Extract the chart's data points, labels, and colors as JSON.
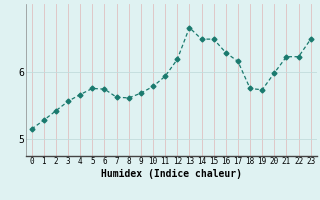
{
  "xlabel": "Humidex (Indice chaleur)",
  "x": [
    0,
    1,
    2,
    3,
    4,
    5,
    6,
    7,
    8,
    9,
    10,
    11,
    12,
    13,
    14,
    15,
    16,
    17,
    18,
    19,
    20,
    21,
    22,
    23
  ],
  "y": [
    5.15,
    5.28,
    5.42,
    5.56,
    5.66,
    5.75,
    5.74,
    5.62,
    5.61,
    5.68,
    5.78,
    5.93,
    6.18,
    6.65,
    6.48,
    6.48,
    6.28,
    6.15,
    5.75,
    5.73,
    5.98,
    6.22,
    6.22,
    6.48
  ],
  "line_color": "#1a7a6e",
  "marker": "D",
  "marker_size": 2.5,
  "bg_color": "#dff2f2",
  "grid_color": "#c2dcdc",
  "axis_bg": "#dff2f2",
  "ylim": [
    4.75,
    7.0
  ],
  "xlim": [
    -0.5,
    23.5
  ],
  "yticks": [
    5,
    6
  ],
  "xticks": [
    0,
    1,
    2,
    3,
    4,
    5,
    6,
    7,
    8,
    9,
    10,
    11,
    12,
    13,
    14,
    15,
    16,
    17,
    18,
    19,
    20,
    21,
    22,
    23
  ],
  "tick_fontsize": 5.5,
  "xlabel_fontsize": 7.0
}
